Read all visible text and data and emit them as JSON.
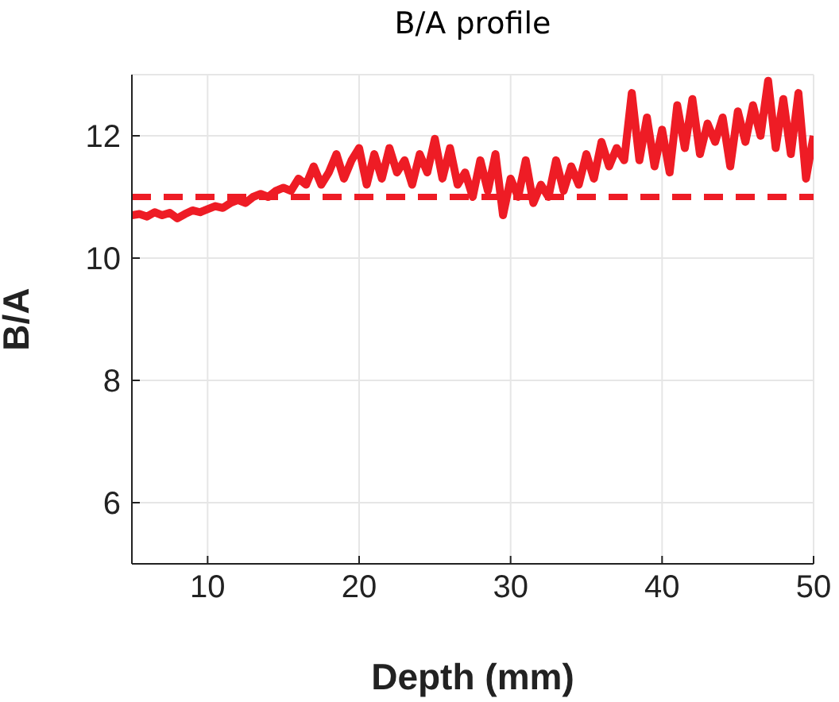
{
  "chart_data": {
    "type": "line",
    "title": "B/A profile",
    "xlabel": "Depth (mm)",
    "ylabel": "B/A",
    "x": [
      5,
      5.5,
      6,
      6.5,
      7,
      7.5,
      8,
      8.5,
      9,
      9.5,
      10,
      10.5,
      11,
      11.5,
      12,
      12.5,
      13,
      13.5,
      14,
      14.5,
      15,
      15.5,
      16,
      16.5,
      17,
      17.5,
      18,
      18.5,
      19,
      19.5,
      20,
      20.5,
      21,
      21.5,
      22,
      22.5,
      23,
      23.5,
      24,
      24.5,
      25,
      25.5,
      26,
      26.5,
      27,
      27.5,
      28,
      28.5,
      29,
      29.5,
      30,
      30.5,
      31,
      31.5,
      32,
      32.5,
      33,
      33.5,
      34,
      34.5,
      35,
      35.5,
      36,
      36.5,
      37,
      37.5,
      38,
      38.5,
      39,
      39.5,
      40,
      40.5,
      41,
      41.5,
      42,
      42.5,
      43,
      43.5,
      44,
      44.5,
      45,
      45.5,
      46,
      46.5,
      47,
      47.5,
      48,
      48.5,
      49,
      49.5,
      50
    ],
    "series": [
      {
        "color": "#ee1c25",
        "values": [
          10.7,
          10.72,
          10.68,
          10.75,
          10.7,
          10.74,
          10.65,
          10.72,
          10.78,
          10.75,
          10.8,
          10.85,
          10.82,
          10.9,
          10.95,
          10.9,
          11.0,
          11.05,
          11.0,
          11.1,
          11.15,
          11.1,
          11.3,
          11.2,
          11.5,
          11.2,
          11.4,
          11.7,
          11.3,
          11.6,
          11.8,
          11.2,
          11.7,
          11.3,
          11.8,
          11.4,
          11.6,
          11.2,
          11.7,
          11.4,
          11.95,
          11.3,
          11.8,
          11.2,
          11.4,
          11.0,
          11.6,
          11.1,
          11.7,
          10.7,
          11.3,
          11.0,
          11.6,
          10.9,
          11.2,
          11.0,
          11.6,
          11.1,
          11.5,
          11.2,
          11.7,
          11.3,
          11.9,
          11.5,
          11.8,
          11.6,
          12.7,
          11.6,
          12.3,
          11.5,
          12.1,
          11.4,
          12.5,
          11.8,
          12.6,
          11.7,
          12.2,
          11.9,
          12.3,
          11.5,
          12.4,
          11.9,
          12.5,
          12.0,
          12.9,
          11.8,
          12.6,
          11.7,
          12.7,
          11.3,
          12.0
        ]
      }
    ],
    "xlim": [
      5,
      50
    ],
    "ylim": [
      5,
      13
    ],
    "xticks": [
      10,
      20,
      30,
      40,
      50
    ],
    "yticks": [
      6,
      8,
      10,
      12
    ],
    "grid": true,
    "marker": "none",
    "line_style": "solid",
    "ref_lines": [
      {
        "axis": "y",
        "value": 11,
        "color": "#ee1c25",
        "line_style": "dashed"
      }
    ]
  }
}
